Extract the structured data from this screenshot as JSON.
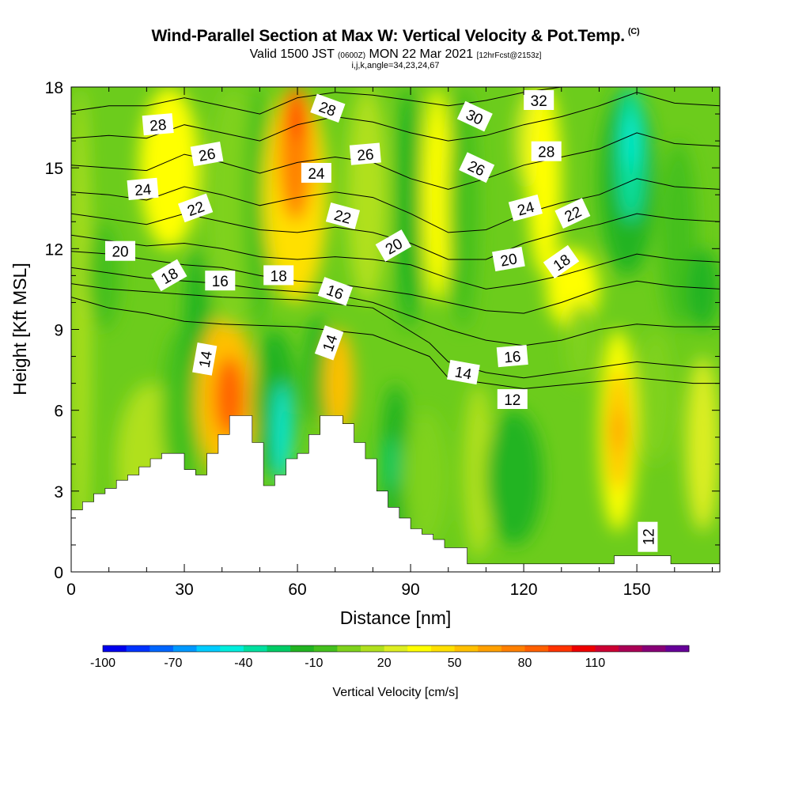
{
  "title": {
    "main": "Wind-Parallel Section at Max W: Vertical Velocity & Pot.Temp.",
    "copyright": "(C)",
    "valid_prefix": "Valid 1500 JST",
    "valid_utc": "(0600Z)",
    "valid_date": "MON 22 Mar 2021",
    "forecast": "[12hrFcst@2153z]",
    "grid_info": "i,j,k,angle=34,23,24,67"
  },
  "chart_data": {
    "type": "heatmap",
    "xlabel": "Distance [nm]",
    "ylabel": "Height [Kft MSL]",
    "xlim": [
      0,
      172
    ],
    "ylim": [
      0,
      18
    ],
    "x_ticks": [
      "0",
      "30",
      "60",
      "90",
      "120",
      "150"
    ],
    "y_ticks": [
      "0",
      "3",
      "6",
      "9",
      "12",
      "15",
      "18"
    ],
    "colorbar": {
      "label": "Vertical Velocity [cm/s]",
      "tick_labels": [
        "-100",
        "-70",
        "-40",
        "-10",
        "20",
        "50",
        "80",
        "110"
      ],
      "colors": [
        "#0000ee",
        "#0033ff",
        "#0066ff",
        "#0099ff",
        "#00ccff",
        "#00eedd",
        "#00e0a0",
        "#00cc66",
        "#22b422",
        "#44c01e",
        "#7fd21c",
        "#b0e01e",
        "#ddee22",
        "#ffff00",
        "#ffe000",
        "#ffc000",
        "#ffa000",
        "#ff8000",
        "#ff6000",
        "#ff3300",
        "#ee0000",
        "#cc0033",
        "#aa0055",
        "#880077",
        "#660099"
      ]
    },
    "shading": {
      "background": "#6ccc1c",
      "zones": [
        {
          "x0": 0,
          "x1": 5,
          "ylo": 0,
          "yhi": 18,
          "w": 8
        },
        {
          "x0": 4,
          "x1": 13,
          "ylo": 9,
          "yhi": 13,
          "w": -15
        },
        {
          "x0": 12,
          "x1": 30,
          "ylo": 1,
          "yhi": 7,
          "w": 6
        },
        {
          "x0": 18,
          "x1": 34,
          "ylo": 12,
          "yhi": 18,
          "w": 28
        },
        {
          "x0": 24,
          "x1": 34,
          "ylo": 3,
          "yhi": 9,
          "w": -12
        },
        {
          "x0": 30,
          "x1": 37,
          "ylo": 6,
          "yhi": 12,
          "w": -18
        },
        {
          "x0": 33,
          "x1": 49,
          "ylo": 3.5,
          "yhi": 9.5,
          "w": 48
        },
        {
          "x0": 38,
          "x1": 46,
          "ylo": 5,
          "yhi": 8,
          "w": 75
        },
        {
          "x0": 36,
          "x1": 50,
          "ylo": 9,
          "yhi": 18,
          "w": 2
        },
        {
          "x0": 46,
          "x1": 53,
          "ylo": 9,
          "yhi": 18,
          "w": -14
        },
        {
          "x0": 48,
          "x1": 60,
          "ylo": 3.5,
          "yhi": 9,
          "w": -22
        },
        {
          "x0": 54,
          "x1": 58,
          "ylo": 3.3,
          "yhi": 7,
          "w": -48
        },
        {
          "x0": 51,
          "x1": 68,
          "ylo": 10,
          "yhi": 18,
          "w": 38
        },
        {
          "x0": 55,
          "x1": 64,
          "ylo": 13,
          "yhi": 18,
          "w": 72
        },
        {
          "x0": 58,
          "x1": 62,
          "ylo": 16,
          "yhi": 18,
          "w": 88
        },
        {
          "x0": 62,
          "x1": 69,
          "ylo": 5.5,
          "yhi": 9.5,
          "w": -18
        },
        {
          "x0": 67,
          "x1": 75,
          "ylo": 5,
          "yhi": 9,
          "w": 52
        },
        {
          "x0": 73,
          "x1": 84,
          "ylo": 10,
          "yhi": 18,
          "w": 14
        },
        {
          "x0": 82,
          "x1": 90,
          "ylo": 1,
          "yhi": 7,
          "w": -22
        },
        {
          "x0": 83,
          "x1": 87,
          "ylo": 3,
          "yhi": 5,
          "w": -35
        },
        {
          "x0": 86,
          "x1": 93,
          "ylo": 9,
          "yhi": 18,
          "w": -18
        },
        {
          "x0": 88,
          "x1": 100,
          "ylo": 1,
          "yhi": 6,
          "w": 2
        },
        {
          "x0": 93,
          "x1": 101,
          "ylo": 10,
          "yhi": 18,
          "w": 28
        },
        {
          "x0": 100,
          "x1": 108,
          "ylo": 9,
          "yhi": 18,
          "w": -12
        },
        {
          "x0": 104,
          "x1": 112,
          "ylo": 0.5,
          "yhi": 7,
          "w": 8
        },
        {
          "x0": 110,
          "x1": 125,
          "ylo": 1,
          "yhi": 6,
          "w": -18
        },
        {
          "x0": 118,
          "x1": 128,
          "ylo": 14,
          "yhi": 18,
          "w": 20
        },
        {
          "x0": 121,
          "x1": 130,
          "ylo": 11,
          "yhi": 18,
          "w": 30
        },
        {
          "x0": 126,
          "x1": 140,
          "ylo": 9,
          "yhi": 12,
          "w": 26
        },
        {
          "x0": 131,
          "x1": 139,
          "ylo": 7,
          "yhi": 10,
          "w": 4
        },
        {
          "x0": 140,
          "x1": 150,
          "ylo": 1.5,
          "yhi": 9,
          "w": 30
        },
        {
          "x0": 142,
          "x1": 148,
          "ylo": 3,
          "yhi": 7.5,
          "w": 50
        },
        {
          "x0": 143,
          "x1": 147,
          "ylo": 4.5,
          "yhi": 6,
          "w": 62
        },
        {
          "x0": 140,
          "x1": 155,
          "ylo": 11,
          "yhi": 18,
          "w": -22
        },
        {
          "x0": 145,
          "x1": 152,
          "ylo": 13,
          "yhi": 18,
          "w": -42
        },
        {
          "x0": 147,
          "x1": 150,
          "ylo": 15,
          "yhi": 17,
          "w": -55
        },
        {
          "x0": 150,
          "x1": 160,
          "ylo": 4,
          "yhi": 9,
          "w": 4
        },
        {
          "x0": 156,
          "x1": 166,
          "ylo": 9,
          "yhi": 16,
          "w": -12
        },
        {
          "x0": 163,
          "x1": 172,
          "ylo": 1.5,
          "yhi": 8,
          "w": 24
        },
        {
          "x0": 163,
          "x1": 172,
          "ylo": 9,
          "yhi": 12,
          "w": -25
        }
      ]
    },
    "terrain": {
      "x": [
        0,
        3,
        6,
        9,
        12,
        15,
        18,
        21,
        24,
        27,
        30,
        33,
        36,
        39,
        42,
        45,
        48,
        51,
        54,
        57,
        60,
        63,
        66,
        69,
        72,
        75,
        78,
        81,
        84,
        87,
        90,
        93,
        96,
        99,
        102,
        105,
        108,
        111,
        114,
        117,
        120,
        123,
        126,
        129,
        132,
        135,
        138,
        141,
        144,
        147,
        150,
        153,
        156,
        159,
        162,
        165,
        168,
        172
      ],
      "height": [
        2.3,
        2.6,
        2.9,
        3.1,
        3.4,
        3.6,
        3.9,
        4.2,
        4.4,
        4.4,
        3.8,
        3.6,
        4.4,
        5.1,
        5.8,
        5.8,
        4.8,
        3.2,
        3.6,
        4.2,
        4.4,
        5.1,
        5.8,
        5.8,
        5.5,
        4.8,
        4.2,
        3.0,
        2.4,
        2.0,
        1.6,
        1.4,
        1.2,
        0.9,
        0.9,
        0.3,
        0.3,
        0.3,
        0.3,
        0.3,
        0.3,
        0.3,
        0.3,
        0.3,
        0.3,
        0.3,
        0.3,
        0.3,
        0.6,
        0.6,
        0.6,
        0.6,
        0.6,
        0.3,
        0.3,
        0.3,
        0.3,
        0.3
      ]
    },
    "theta_contours": [
      {
        "value": "12",
        "x": [
          0,
          5,
          10,
          20,
          30,
          40,
          60,
          80,
          95,
          100,
          110,
          120,
          135,
          150,
          165,
          172
        ],
        "y": [
          10.2,
          10.0,
          9.8,
          9.6,
          9.3,
          9.2,
          9.1,
          8.8,
          8.0,
          7.2,
          7.0,
          6.8,
          7.0,
          7.2,
          7.0,
          7.0
        ]
      },
      {
        "value": "14",
        "x": [
          0,
          10,
          20,
          30,
          40,
          60,
          80,
          95,
          100,
          110,
          120,
          135,
          150,
          165,
          172
        ],
        "y": [
          10.7,
          10.5,
          10.4,
          10.3,
          10.2,
          10.1,
          9.8,
          8.5,
          7.8,
          7.4,
          7.2,
          7.5,
          7.8,
          7.6,
          7.6
        ]
      },
      {
        "value": "16",
        "x": [
          0,
          10,
          20,
          30,
          40,
          50,
          60,
          70,
          80,
          90,
          100,
          110,
          120,
          130,
          140,
          150,
          160,
          172
        ],
        "y": [
          11.3,
          11.1,
          10.9,
          10.8,
          10.7,
          10.5,
          10.4,
          10.3,
          10.0,
          9.5,
          9.0,
          8.6,
          8.4,
          8.6,
          9.0,
          9.2,
          9.1,
          9.1
        ]
      },
      {
        "value": "18",
        "x": [
          0,
          10,
          20,
          30,
          40,
          50,
          60,
          70,
          80,
          90,
          100,
          110,
          120,
          130,
          140,
          150,
          160,
          172
        ],
        "y": [
          11.9,
          11.8,
          11.6,
          11.4,
          11.3,
          11.0,
          10.8,
          10.7,
          10.5,
          10.3,
          10.0,
          9.7,
          9.6,
          10.0,
          10.5,
          10.8,
          10.6,
          10.5
        ]
      },
      {
        "value": "20",
        "x": [
          0,
          10,
          20,
          30,
          40,
          50,
          60,
          70,
          80,
          90,
          100,
          110,
          120,
          130,
          140,
          150,
          160,
          172
        ],
        "y": [
          12.5,
          12.3,
          12.1,
          12.2,
          12.0,
          11.7,
          11.6,
          11.7,
          11.6,
          11.4,
          10.9,
          10.5,
          10.7,
          11.0,
          11.4,
          11.8,
          11.6,
          11.5
        ]
      },
      {
        "value": "22",
        "x": [
          0,
          10,
          20,
          30,
          40,
          50,
          60,
          70,
          80,
          90,
          100,
          110,
          120,
          130,
          140,
          150,
          160,
          172
        ],
        "y": [
          13.3,
          13.1,
          12.9,
          13.3,
          13.0,
          12.7,
          12.6,
          12.8,
          12.6,
          12.2,
          11.6,
          11.6,
          12.2,
          12.6,
          12.9,
          13.3,
          13.1,
          13.0
        ]
      },
      {
        "value": "24",
        "x": [
          0,
          10,
          20,
          30,
          40,
          50,
          60,
          70,
          80,
          90,
          100,
          110,
          120,
          130,
          140,
          150,
          160,
          172
        ],
        "y": [
          14.1,
          14.0,
          13.8,
          14.3,
          14.0,
          13.6,
          13.9,
          14.1,
          13.9,
          13.3,
          12.6,
          12.7,
          13.3,
          13.7,
          14.0,
          14.6,
          14.3,
          14.2
        ]
      },
      {
        "value": "26",
        "x": [
          0,
          10,
          20,
          30,
          40,
          50,
          60,
          70,
          80,
          90,
          100,
          110,
          120,
          130,
          140,
          150,
          160,
          172
        ],
        "y": [
          15.1,
          15.0,
          14.9,
          15.5,
          15.2,
          14.8,
          15.2,
          15.4,
          15.2,
          14.6,
          14.2,
          14.6,
          15.1,
          15.4,
          15.7,
          16.3,
          15.9,
          15.8
        ]
      },
      {
        "value": "28",
        "x": [
          0,
          10,
          20,
          30,
          40,
          50,
          60,
          70,
          80,
          90,
          100,
          110,
          120,
          130,
          140,
          150,
          160,
          172
        ],
        "y": [
          16.1,
          16.2,
          16.1,
          16.6,
          16.3,
          16.0,
          16.6,
          16.9,
          16.7,
          16.3,
          16.0,
          16.2,
          16.6,
          16.9,
          17.3,
          17.8,
          17.4,
          17.3
        ]
      },
      {
        "value": "30",
        "x": [
          0,
          10,
          20,
          30,
          40,
          50,
          60,
          70,
          80,
          90,
          100,
          110,
          120,
          130,
          140,
          150,
          160,
          172
        ],
        "y": [
          17.1,
          17.3,
          17.3,
          17.6,
          17.3,
          17.0,
          17.6,
          17.8,
          17.7,
          17.5,
          17.3,
          17.5,
          17.8,
          18.0,
          18.0,
          18.0,
          18.0,
          18.0
        ]
      }
    ],
    "contour_labels": [
      {
        "text": "28",
        "x": 23,
        "y": 16.6,
        "angle": -5
      },
      {
        "text": "26",
        "x": 36,
        "y": 15.5,
        "angle": -10
      },
      {
        "text": "24",
        "x": 19,
        "y": 14.2,
        "angle": -5
      },
      {
        "text": "22",
        "x": 33,
        "y": 13.5,
        "angle": -20
      },
      {
        "text": "20",
        "x": 13,
        "y": 11.9,
        "angle": 0
      },
      {
        "text": "18",
        "x": 26,
        "y": 11.0,
        "angle": -30
      },
      {
        "text": "16",
        "x": 39.5,
        "y": 10.8,
        "angle": 0
      },
      {
        "text": "18",
        "x": 55,
        "y": 11.0,
        "angle": 0
      },
      {
        "text": "14",
        "x": 35.5,
        "y": 7.9,
        "angle": -80
      },
      {
        "text": "28",
        "x": 68,
        "y": 17.2,
        "angle": 20
      },
      {
        "text": "24",
        "x": 65,
        "y": 14.8,
        "angle": 0
      },
      {
        "text": "26",
        "x": 78,
        "y": 15.5,
        "angle": -5
      },
      {
        "text": "22",
        "x": 72,
        "y": 13.2,
        "angle": 15
      },
      {
        "text": "16",
        "x": 70,
        "y": 10.4,
        "angle": 20
      },
      {
        "text": "20",
        "x": 85.5,
        "y": 12.1,
        "angle": -30
      },
      {
        "text": "14",
        "x": 68.5,
        "y": 8.5,
        "angle": -70
      },
      {
        "text": "30",
        "x": 107,
        "y": 16.9,
        "angle": 25
      },
      {
        "text": "32",
        "x": 124,
        "y": 17.5,
        "angle": 0
      },
      {
        "text": "26",
        "x": 107.5,
        "y": 15.0,
        "angle": 25
      },
      {
        "text": "28",
        "x": 126,
        "y": 15.6,
        "angle": 0
      },
      {
        "text": "24",
        "x": 120.5,
        "y": 13.5,
        "angle": -15
      },
      {
        "text": "22",
        "x": 133,
        "y": 13.3,
        "angle": -25
      },
      {
        "text": "20",
        "x": 116,
        "y": 11.6,
        "angle": -10
      },
      {
        "text": "18",
        "x": 130,
        "y": 11.5,
        "angle": -35
      },
      {
        "text": "16",
        "x": 117,
        "y": 8.0,
        "angle": -5
      },
      {
        "text": "14",
        "x": 104,
        "y": 7.4,
        "angle": 10
      },
      {
        "text": "12",
        "x": 117,
        "y": 6.4,
        "angle": 0
      },
      {
        "text": "12",
        "x": 153,
        "y": 1.3,
        "angle": -90
      }
    ]
  }
}
